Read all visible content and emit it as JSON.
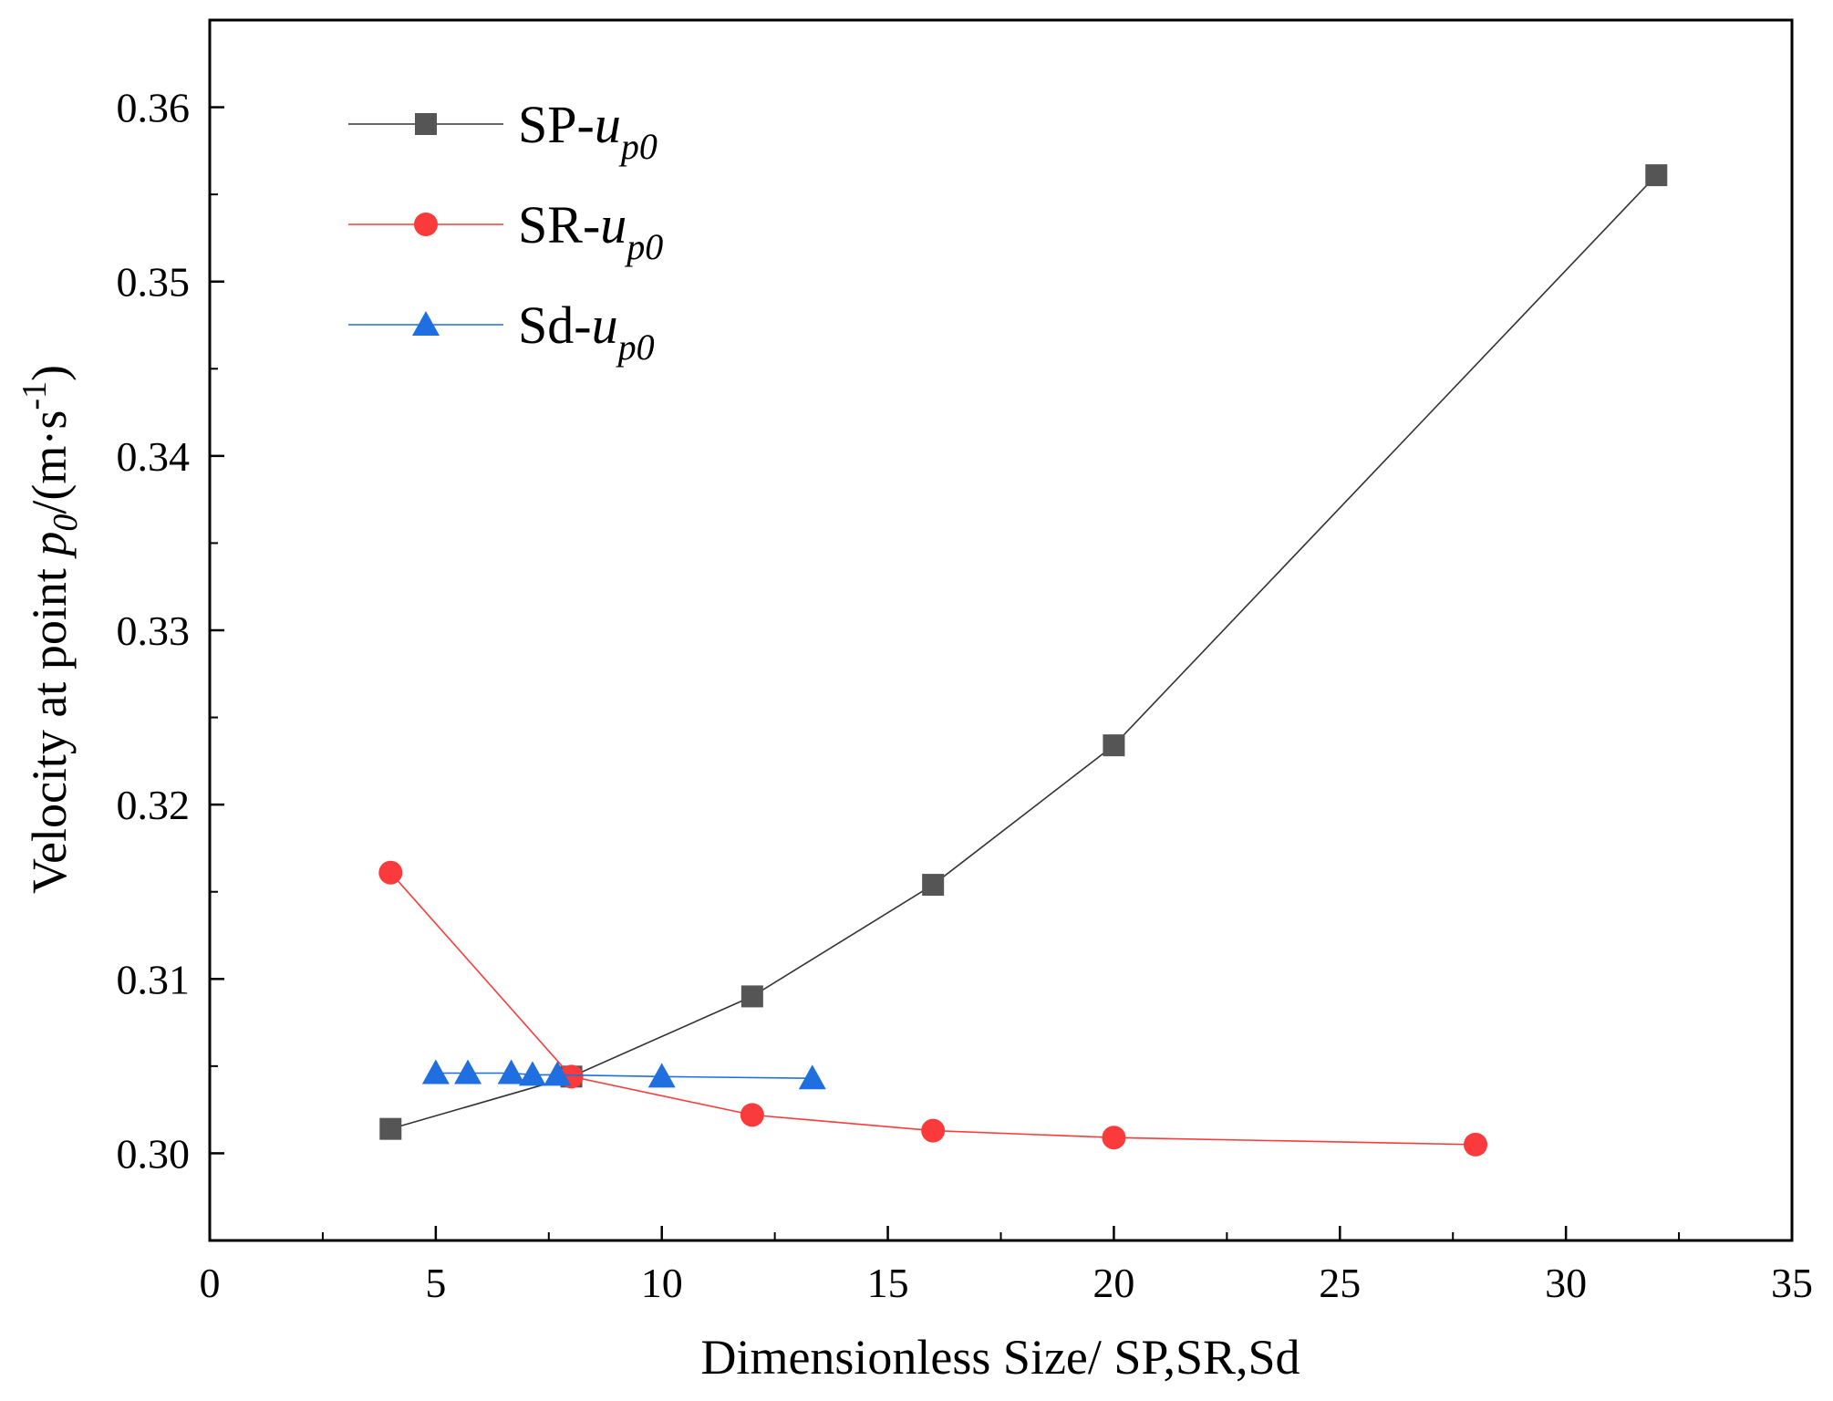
{
  "chart_data": {
    "type": "line",
    "xlabel": "Dimensionless Size/ SP,SR,Sd",
    "ylabel": {
      "main": "Velocity at point ",
      "p": "p",
      "sub": "0",
      "unit": "/(m·s",
      "sup": "-1",
      "close": ")"
    },
    "xlim": [
      0,
      35
    ],
    "ylim": [
      0.295,
      0.365
    ],
    "x_ticks": [
      "0",
      "5",
      "10",
      "15",
      "20",
      "25",
      "30",
      "35"
    ],
    "y_ticks": [
      "0.30",
      "0.31",
      "0.32",
      "0.33",
      "0.34",
      "0.35",
      "0.36"
    ],
    "legend_position": "top-left",
    "grid": false,
    "series": [
      {
        "name": "SP-u_p0",
        "label_main": "SP-",
        "label_var": "u",
        "label_sub": "p0",
        "marker": "square",
        "color": "#555555",
        "line_color": "#333333",
        "x": [
          4,
          8,
          12,
          16,
          20,
          32
        ],
        "y": [
          0.3014,
          0.3044,
          0.309,
          0.3154,
          0.3234,
          0.3561
        ]
      },
      {
        "name": "SR-u_p0",
        "label_main": "SR-",
        "label_var": "u",
        "label_sub": "p0",
        "marker": "circle",
        "color": "#fb3b3b",
        "line_color": "#fb3b3b",
        "x": [
          4,
          8,
          12,
          16,
          20,
          28
        ],
        "y": [
          0.3161,
          0.3044,
          0.3022,
          0.3013,
          0.3009,
          0.3005
        ]
      },
      {
        "name": "Sd-u_p0",
        "label_main": "Sd-",
        "label_var": "u",
        "label_sub": "p0",
        "marker": "triangle",
        "color": "#1f6fe0",
        "line_color": "#1f6fe0",
        "x": [
          5,
          5.71,
          6.67,
          7.14,
          7.69,
          10,
          13.33
        ],
        "y": [
          0.3046,
          0.3046,
          0.3046,
          0.3045,
          0.3045,
          0.3044,
          0.3043
        ]
      }
    ]
  }
}
